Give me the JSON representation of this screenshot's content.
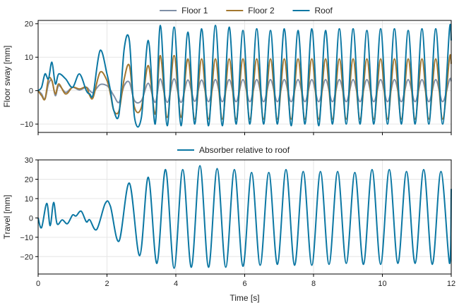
{
  "chart_data": [
    {
      "type": "line",
      "ylabel": "Floor sway [mm]",
      "xlim": [
        0,
        12
      ],
      "ylim": [
        -12.5,
        21
      ],
      "yticks": [
        -10,
        0,
        10,
        20
      ],
      "xticks": [
        0,
        2,
        4,
        6,
        8,
        10,
        12
      ],
      "grid": true,
      "legend": "top-center, outside",
      "series": [
        {
          "name": "Floor 1",
          "color": "#7f8fa6",
          "x": [
            0,
            0.1,
            0.2,
            0.3,
            0.4,
            0.5,
            0.6,
            0.8,
            1.0,
            1.2,
            1.4,
            1.5,
            1.6,
            1.8,
            2.0,
            2.1,
            2.2,
            2.35,
            2.5,
            2.65,
            2.8,
            3.0,
            3.2,
            3.4,
            3.55,
            3.75,
            3.95,
            4.15,
            4.35,
            4.55,
            4.75,
            4.95,
            5.15,
            5.35,
            5.55,
            5.75,
            5.95,
            6.15,
            6.35,
            6.55,
            6.75,
            6.95,
            7.15,
            7.35,
            7.55,
            7.75,
            7.95,
            8.15,
            8.35,
            8.55,
            8.75,
            8.95,
            9.15,
            9.35,
            9.55,
            9.75,
            9.95,
            10.15,
            10.35,
            10.55,
            10.75,
            10.95,
            11.15,
            11.35,
            11.55,
            11.75,
            11.95,
            12.0
          ],
          "y": [
            0,
            -1,
            -2.5,
            2,
            3,
            -1.5,
            1.5,
            -0.5,
            1,
            0.2,
            1,
            0,
            -0.5,
            1.8,
            1.5,
            0.2,
            -1.5,
            -3.5,
            1.5,
            2.5,
            -3,
            -3,
            2.2,
            -3.5,
            3.5,
            -3.5,
            3.5,
            -3.5,
            3.2,
            -3.2,
            3.2,
            -3.3,
            3.3,
            -3.3,
            3.3,
            -3.3,
            3.3,
            -3.3,
            3.3,
            -3.3,
            3.3,
            -3.3,
            3.3,
            -3.3,
            3.3,
            -3.3,
            3.3,
            -3.3,
            3.3,
            -3.3,
            3.3,
            -3.3,
            3.3,
            -3.3,
            3.3,
            -3.3,
            3.3,
            -3.3,
            3.3,
            -3.3,
            3.3,
            -3.3,
            3.3,
            -3.3,
            3.3,
            -3.3,
            3.3,
            2.8
          ]
        },
        {
          "name": "Floor 2",
          "color": "#a3772f",
          "x": [
            0,
            0.1,
            0.2,
            0.3,
            0.4,
            0.5,
            0.6,
            0.8,
            1.0,
            1.2,
            1.4,
            1.5,
            1.6,
            1.8,
            2.0,
            2.1,
            2.2,
            2.35,
            2.5,
            2.65,
            2.8,
            3.0,
            3.2,
            3.4,
            3.55,
            3.75,
            3.95,
            4.15,
            4.35,
            4.55,
            4.75,
            4.95,
            5.15,
            5.35,
            5.55,
            5.75,
            5.95,
            6.15,
            6.35,
            6.55,
            6.75,
            6.95,
            7.15,
            7.35,
            7.55,
            7.75,
            7.95,
            8.15,
            8.35,
            8.55,
            8.75,
            8.95,
            9.15,
            9.35,
            9.55,
            9.75,
            9.95,
            10.15,
            10.35,
            10.55,
            10.75,
            10.95,
            11.15,
            11.35,
            11.55,
            11.75,
            11.95,
            12.0
          ],
          "y": [
            0,
            -1.5,
            -2.5,
            3.5,
            3,
            -1,
            2,
            -1,
            1,
            0.5,
            1,
            -1.5,
            -2,
            5.5,
            3,
            -1,
            -6,
            -6,
            3.5,
            7.5,
            -5,
            -5,
            7.5,
            -7,
            10.5,
            -8,
            10.5,
            -8,
            9.5,
            -8.5,
            9.5,
            -8.5,
            9.5,
            -8.5,
            9.5,
            -8.5,
            9.5,
            -8.5,
            9.5,
            -8.5,
            9.5,
            -8.5,
            9.5,
            -8.5,
            9.5,
            -8.5,
            9.5,
            -8.5,
            9.5,
            -8.5,
            9.5,
            -8.5,
            9.5,
            -8.5,
            9.5,
            -8.5,
            9.5,
            -8.5,
            9.5,
            -8.5,
            9.5,
            -8.5,
            9.5,
            -8.5,
            9.5,
            -8.5,
            9.8,
            8
          ]
        },
        {
          "name": "Roof",
          "color": "#0b77a3",
          "x": [
            0,
            0.1,
            0.2,
            0.3,
            0.4,
            0.5,
            0.6,
            0.8,
            1.0,
            1.2,
            1.4,
            1.5,
            1.6,
            1.8,
            2.0,
            2.1,
            2.2,
            2.35,
            2.5,
            2.65,
            2.8,
            3.0,
            3.2,
            3.4,
            3.55,
            3.75,
            3.95,
            4.15,
            4.35,
            4.55,
            4.75,
            4.95,
            5.15,
            5.35,
            5.55,
            5.75,
            5.95,
            6.15,
            6.35,
            6.55,
            6.75,
            6.95,
            7.15,
            7.35,
            7.55,
            7.75,
            7.95,
            8.15,
            8.35,
            8.55,
            8.75,
            8.95,
            9.15,
            9.35,
            9.55,
            9.75,
            9.95,
            10.15,
            10.35,
            10.55,
            10.75,
            10.95,
            11.15,
            11.35,
            11.55,
            11.75,
            11.95,
            12.0
          ],
          "y": [
            0,
            1,
            5,
            3.5,
            8.5,
            2,
            5,
            3.5,
            1,
            5,
            0,
            -1,
            -1,
            12,
            5,
            0,
            -6,
            -7,
            12.5,
            15,
            -8,
            -8,
            15,
            -10,
            19.5,
            -10.5,
            19,
            -10.5,
            17.5,
            -10,
            18.5,
            -10.5,
            19.5,
            -10.5,
            19,
            -10,
            18,
            -10,
            18.5,
            -10,
            18,
            -10,
            18.5,
            -10.5,
            18,
            -10,
            18.5,
            -10.5,
            18,
            -10,
            18.5,
            -10,
            18.5,
            -10,
            18,
            -10,
            18.5,
            -10,
            18.5,
            -10,
            18,
            -10,
            18.5,
            -10,
            18.5,
            -10,
            18.5,
            15
          ]
        }
      ]
    },
    {
      "type": "line",
      "xlabel": "Time [s]",
      "ylabel": "Travel [mm]",
      "xlim": [
        0,
        12
      ],
      "ylim": [
        -29,
        30
      ],
      "yticks": [
        -20,
        -10,
        0,
        10,
        20,
        30
      ],
      "xticks": [
        0,
        2,
        4,
        6,
        8,
        10,
        12
      ],
      "grid": true,
      "legend": "top-center, outside",
      "series": [
        {
          "name": "Absorber relative to roof",
          "color": "#0b77a3",
          "x": [
            0,
            0.1,
            0.25,
            0.35,
            0.45,
            0.55,
            0.7,
            0.85,
            1.0,
            1.1,
            1.25,
            1.4,
            1.5,
            1.7,
            1.95,
            2.1,
            2.35,
            2.65,
            2.95,
            3.2,
            3.45,
            3.7,
            3.95,
            4.2,
            4.45,
            4.7,
            4.95,
            5.2,
            5.45,
            5.7,
            5.95,
            6.2,
            6.45,
            6.7,
            6.95,
            7.2,
            7.45,
            7.7,
            7.95,
            8.2,
            8.45,
            8.7,
            8.95,
            9.2,
            9.45,
            9.7,
            9.95,
            10.2,
            10.45,
            10.7,
            10.95,
            11.2,
            11.45,
            11.7,
            11.95,
            12.0
          ],
          "y": [
            0,
            -5,
            7.5,
            -4,
            8,
            -3,
            -1,
            -3,
            1.5,
            1,
            3.5,
            -2,
            -1,
            -6,
            7.5,
            6,
            -12,
            18,
            -19.5,
            21,
            -23.5,
            25,
            -26,
            25,
            -25.5,
            27,
            -25.5,
            25.5,
            -25.5,
            25,
            -25,
            23.5,
            -24.5,
            23.5,
            -24,
            25,
            -24.5,
            24,
            -24.5,
            24,
            -24,
            24,
            -23.5,
            23.5,
            -24,
            25,
            -24,
            25,
            -23.5,
            24,
            -23.5,
            25,
            -24,
            24,
            -23.5,
            15
          ]
        }
      ]
    }
  ]
}
